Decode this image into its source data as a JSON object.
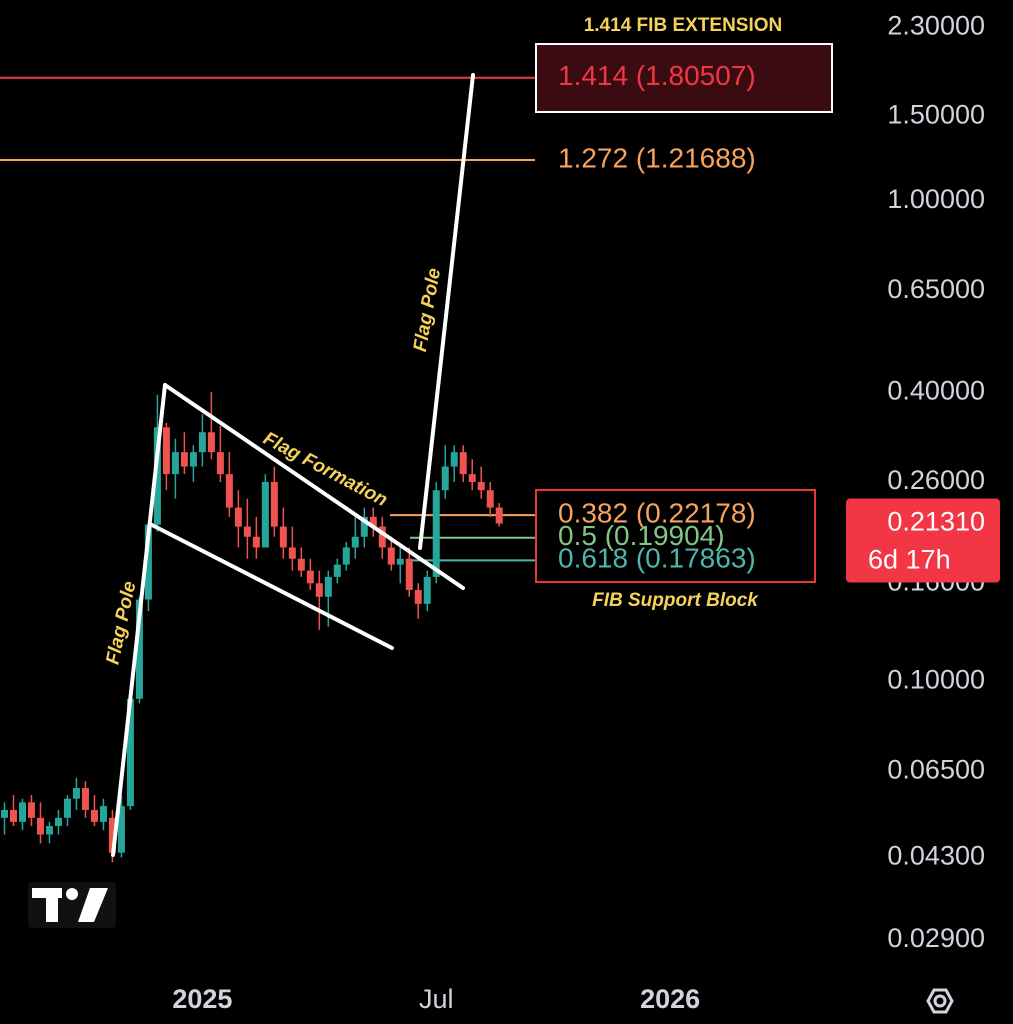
{
  "chart_data": {
    "type": "candlestick",
    "x": [
      -22,
      -21,
      -20,
      -19,
      -18,
      -17,
      -16,
      -15,
      -14,
      -13,
      -12,
      -11,
      -10,
      -9,
      -8,
      -7,
      -6,
      -5,
      -4,
      -3,
      -2,
      -1,
      0,
      1,
      2,
      3,
      4,
      5,
      6,
      7,
      8,
      9,
      10,
      11,
      12,
      13,
      14,
      15,
      16,
      17,
      18,
      19,
      20,
      21,
      22,
      23,
      24,
      25,
      26,
      27,
      28,
      29,
      30,
      31,
      32,
      33
    ],
    "open": [
      0.052,
      0.054,
      0.051,
      0.056,
      0.052,
      0.048,
      0.05,
      0.052,
      0.057,
      0.06,
      0.054,
      0.051,
      0.052,
      0.044,
      0.055,
      0.092,
      0.148,
      0.212,
      0.338,
      0.27,
      0.3,
      0.28,
      0.3,
      0.33,
      0.3,
      0.27,
      0.23,
      0.21,
      0.2,
      0.19,
      0.26,
      0.21,
      0.19,
      0.18,
      0.17,
      0.16,
      0.15,
      0.165,
      0.175,
      0.19,
      0.2,
      0.22,
      0.21,
      0.19,
      0.175,
      0.18,
      0.155,
      0.145,
      0.165,
      0.25,
      0.28,
      0.3,
      0.27,
      0.26,
      0.25,
      0.23
    ],
    "high": [
      0.056,
      0.058,
      0.057,
      0.058,
      0.056,
      0.051,
      0.054,
      0.058,
      0.063,
      0.062,
      0.058,
      0.057,
      0.054,
      0.058,
      0.095,
      0.15,
      0.215,
      0.395,
      0.345,
      0.32,
      0.33,
      0.31,
      0.36,
      0.4,
      0.34,
      0.3,
      0.25,
      0.24,
      0.22,
      0.27,
      0.28,
      0.23,
      0.21,
      0.19,
      0.18,
      0.17,
      0.17,
      0.18,
      0.195,
      0.22,
      0.23,
      0.23,
      0.22,
      0.2,
      0.19,
      0.19,
      0.16,
      0.17,
      0.26,
      0.31,
      0.31,
      0.31,
      0.29,
      0.28,
      0.26,
      0.235
    ],
    "low": [
      0.048,
      0.05,
      0.049,
      0.05,
      0.046,
      0.046,
      0.048,
      0.05,
      0.054,
      0.052,
      0.05,
      0.049,
      0.042,
      0.043,
      0.054,
      0.09,
      0.14,
      0.205,
      0.25,
      0.24,
      0.27,
      0.26,
      0.28,
      0.29,
      0.26,
      0.22,
      0.19,
      0.18,
      0.18,
      0.19,
      0.2,
      0.18,
      0.17,
      0.165,
      0.155,
      0.128,
      0.13,
      0.16,
      0.17,
      0.18,
      0.19,
      0.2,
      0.18,
      0.17,
      0.16,
      0.15,
      0.135,
      0.14,
      0.16,
      0.24,
      0.26,
      0.26,
      0.25,
      0.24,
      0.22,
      0.21
    ],
    "close": [
      0.054,
      0.051,
      0.056,
      0.052,
      0.048,
      0.05,
      0.052,
      0.057,
      0.06,
      0.054,
      0.051,
      0.055,
      0.044,
      0.055,
      0.092,
      0.148,
      0.212,
      0.338,
      0.27,
      0.3,
      0.28,
      0.3,
      0.33,
      0.3,
      0.27,
      0.23,
      0.21,
      0.2,
      0.19,
      0.26,
      0.21,
      0.19,
      0.18,
      0.17,
      0.16,
      0.15,
      0.165,
      0.175,
      0.19,
      0.2,
      0.22,
      0.21,
      0.19,
      0.175,
      0.18,
      0.155,
      0.145,
      0.165,
      0.25,
      0.28,
      0.3,
      0.27,
      0.26,
      0.25,
      0.23,
      0.2131
    ],
    "up_color": "#26a69a",
    "down_color": "#ef5350",
    "log_scale": true,
    "ylim": [
      0.0239,
      2.62
    ],
    "yticks": [
      {
        "value": 2.3,
        "label": "2.30000"
      },
      {
        "value": 1.5,
        "label": "1.50000"
      },
      {
        "value": 1,
        "label": "1.00000"
      },
      {
        "value": 0.65,
        "label": "0.65000"
      },
      {
        "value": 0.4,
        "label": "0.40000"
      },
      {
        "value": 0.26,
        "label": "0.26000"
      },
      {
        "value": 0.16,
        "label": "0.16000"
      },
      {
        "value": 0.1,
        "label": "0.10000"
      },
      {
        "value": 0.065,
        "label": "0.06500"
      },
      {
        "value": 0.043,
        "label": "0.04300"
      },
      {
        "value": 0.029,
        "label": "0.02900"
      }
    ],
    "xlim": [
      -22.5,
      72
    ],
    "xticks": [
      {
        "value": 0,
        "label": "2025"
      },
      {
        "value": 26,
        "label": "Jul"
      },
      {
        "value": 52,
        "label": "2026"
      }
    ],
    "levels": [
      {
        "value": 1.80507,
        "label": "1.414 (1.80507)",
        "color": "#f23645"
      },
      {
        "value": 1.21688,
        "label": "1.272 (1.21688)",
        "color": "#f7a35c"
      },
      {
        "value": 0.22178,
        "label": "0.382 (0.22178)",
        "color": "#f7a35c"
      },
      {
        "value": 0.19904,
        "label": "0.5 (0.19904)",
        "color": "#81c784"
      },
      {
        "value": 0.17863,
        "label": "0.618 (0.17863)",
        "color": "#4db6ac"
      }
    ],
    "annotations": [
      "1.414 FIB EXTENSION",
      "Flag Pole",
      "Flag Formation",
      "Flag Pole",
      "FIB Support Block"
    ],
    "last_price": {
      "value": 0.2131,
      "label": "0.21310"
    },
    "countdown": "6d 17h"
  }
}
